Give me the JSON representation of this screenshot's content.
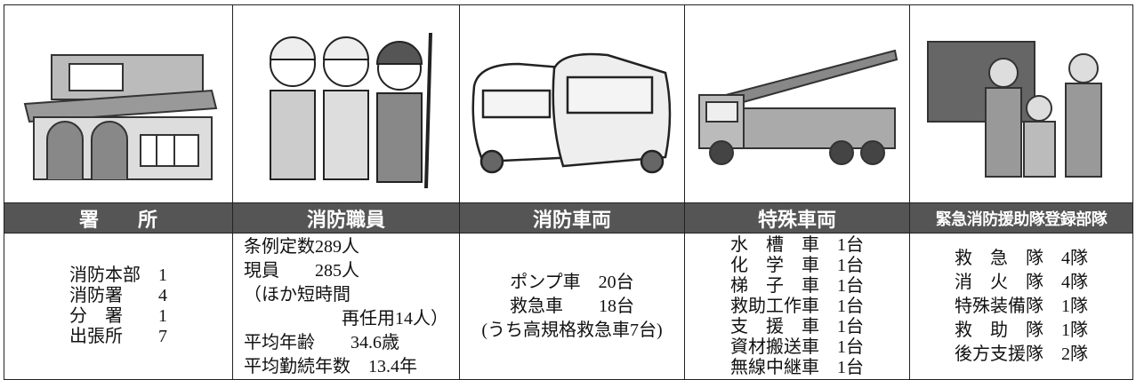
{
  "columns": [
    {
      "header": "署　　所",
      "lines": [
        "消防本部　1",
        "消防署　　4",
        "分　署　　1",
        "出張所　　7"
      ]
    },
    {
      "header": "消防職員",
      "lines": [
        "条例定数289人",
        "現員　　285人",
        "（ほか短時間",
        "再任用14人）",
        "平均年齢　　34.6歳",
        "平均勤続年数　13.4年"
      ]
    },
    {
      "header": "消防車両",
      "lines": [
        "ポンプ車　20台",
        "救急車　　18台",
        "(うち高規格救急車7台)"
      ]
    },
    {
      "header": "特殊車両",
      "lines": [
        "水　槽　車　1台",
        "化　学　車　1台",
        "梯　子　車　1台",
        "救助工作車　1台",
        "支　援　車　1台",
        "資材搬送車　1台",
        "無線中継車　1台"
      ]
    },
    {
      "header": "緊急消防援助隊登録部隊",
      "lines": [
        "救　急　隊　4隊",
        "消　火　隊　4隊",
        "特殊装備隊　1隊",
        "救　助　隊　1隊",
        "後方支援隊　2隊"
      ]
    }
  ]
}
